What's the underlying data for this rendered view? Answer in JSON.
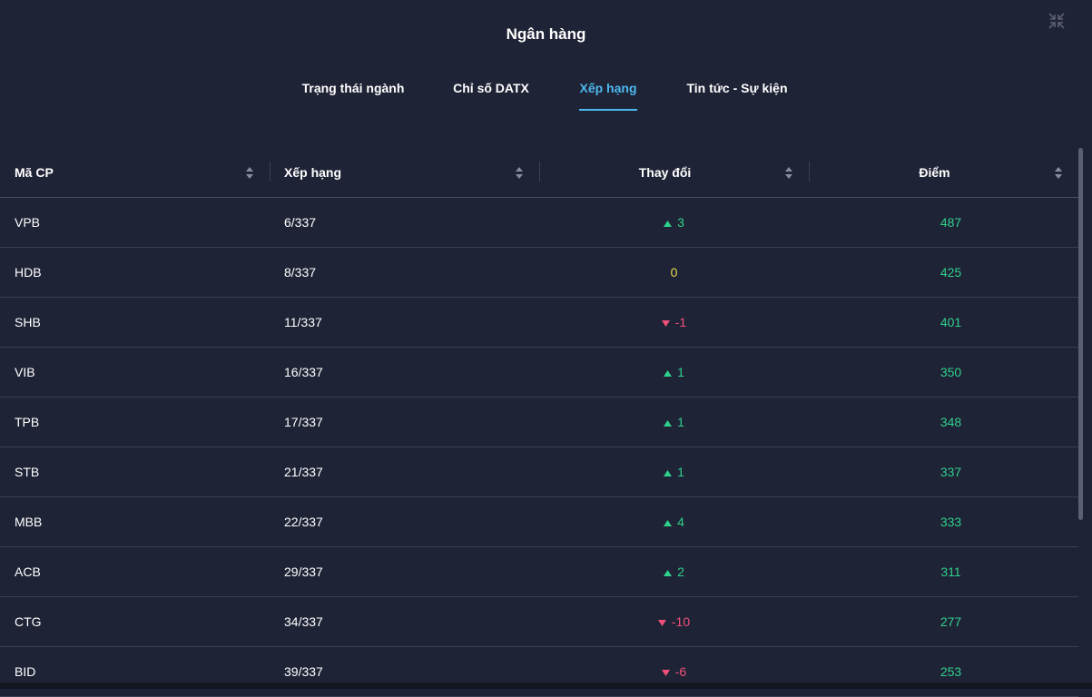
{
  "header": {
    "title": "Ngân hàng"
  },
  "tabs": [
    {
      "label": "Trạng thái ngành"
    },
    {
      "label": "Chỉ số DATX"
    },
    {
      "label": "Xếp hạng",
      "active": true
    },
    {
      "label": "Tin tức - Sự kiện"
    }
  ],
  "table": {
    "columns": [
      "Mã CP",
      "Xếp hạng",
      "Thay đổi",
      "Điểm"
    ],
    "rows": [
      [
        "VPB",
        "6/337",
        3,
        487
      ],
      [
        "HDB",
        "8/337",
        0,
        425
      ],
      [
        "SHB",
        "11/337",
        -1,
        401
      ],
      [
        "VIB",
        "16/337",
        1,
        350
      ],
      [
        "TPB",
        "17/337",
        1,
        348
      ],
      [
        "STB",
        "21/337",
        1,
        337
      ],
      [
        "MBB",
        "22/337",
        4,
        333
      ],
      [
        "ACB",
        "29/337",
        2,
        311
      ],
      [
        "CTG",
        "34/337",
        -10,
        277
      ],
      [
        "BID",
        "39/337",
        -6,
        253
      ]
    ]
  }
}
